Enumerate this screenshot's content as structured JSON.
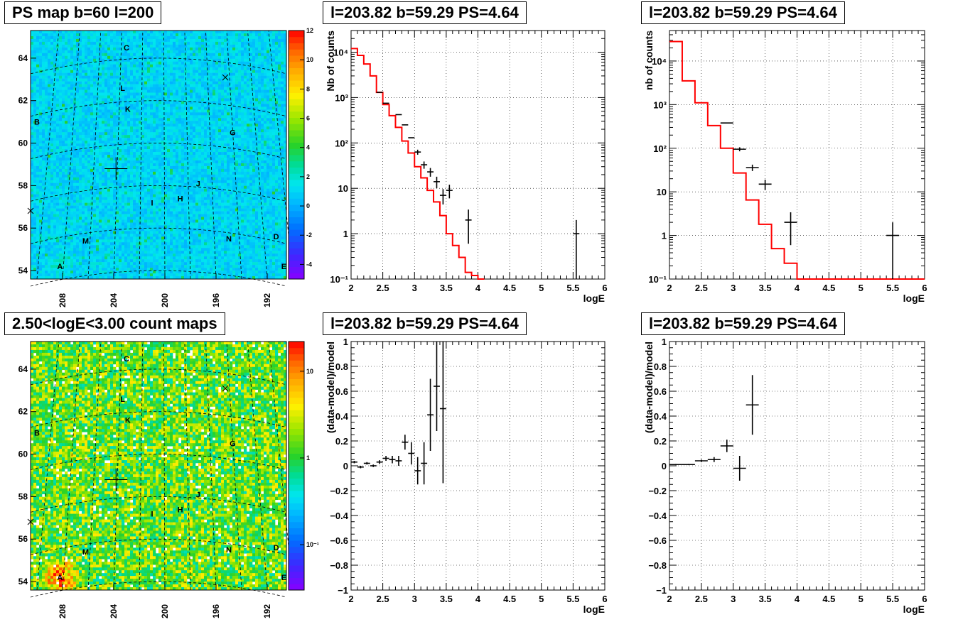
{
  "panels": {
    "ps_map": {
      "title": "PS map b=60 l=200"
    },
    "count_map": {
      "title": "2.50<logE<3.00 count maps"
    },
    "spec_left": {
      "title": "l=203.82 b=59.29 PS=4.64"
    },
    "spec_right": {
      "title": "l=203.82 b=59.29 PS=4.64"
    },
    "resid_left": {
      "title": "l=203.82 b=59.29 PS=4.64"
    },
    "resid_right": {
      "title": "l=203.82 b=59.29 PS=4.64"
    }
  },
  "colors": {
    "model_line": "#ff0000",
    "data": "#000000"
  },
  "chart_data": [
    {
      "id": "ps_map",
      "type": "heatmap",
      "title": "PS map b=60 l=200",
      "x_ticks": [
        "208",
        "204",
        "200",
        "196",
        "192"
      ],
      "x_tick_values": [
        208,
        204,
        200,
        196,
        192
      ],
      "xlim": [
        210.5,
        190.5
      ],
      "y_ticks": [
        "54",
        "56",
        "58",
        "60",
        "62",
        "64"
      ],
      "y_tick_values": [
        54,
        56,
        58,
        60,
        62,
        64
      ],
      "ylim": [
        53.6,
        65.3
      ],
      "colorbar_ticks": [
        "-4",
        "-2",
        "0",
        "2",
        "4",
        "6",
        "8",
        "10",
        "12"
      ],
      "colorbar_values": [
        -4,
        -2,
        0,
        2,
        4,
        6,
        8,
        10,
        12
      ],
      "colorbar_range": [
        -5,
        12
      ],
      "colorbar_log": false,
      "typical_value": 1,
      "source_labels": [
        {
          "text": "C",
          "l": 203.0,
          "b": 64.5
        },
        {
          "text": "L",
          "l": 203.3,
          "b": 62.6
        },
        {
          "text": "K",
          "l": 202.9,
          "b": 61.6
        },
        {
          "text": "B",
          "l": 210.0,
          "b": 61.0
        },
        {
          "text": "G",
          "l": 194.7,
          "b": 60.5
        },
        {
          "text": "J",
          "l": 197.4,
          "b": 58.1
        },
        {
          "text": "I",
          "l": 201.0,
          "b": 57.2
        },
        {
          "text": "H",
          "l": 198.8,
          "b": 57.4
        },
        {
          "text": "M",
          "l": 206.2,
          "b": 55.4
        },
        {
          "text": "N",
          "l": 195.0,
          "b": 55.5
        },
        {
          "text": "D",
          "l": 191.3,
          "b": 55.6
        },
        {
          "text": "A",
          "l": 208.2,
          "b": 54.2
        },
        {
          "text": "E",
          "l": 190.7,
          "b": 54.2
        }
      ]
    },
    {
      "id": "count_map",
      "type": "heatmap",
      "title": "2.50<logE<3.00 count maps",
      "x_ticks": [
        "208",
        "204",
        "200",
        "196",
        "192"
      ],
      "x_tick_values": [
        208,
        204,
        200,
        196,
        192
      ],
      "xlim": [
        210.5,
        190.5
      ],
      "y_ticks": [
        "54",
        "56",
        "58",
        "60",
        "62",
        "64"
      ],
      "y_tick_values": [
        54,
        56,
        58,
        60,
        62,
        64
      ],
      "ylim": [
        53.6,
        65.3
      ],
      "colorbar_ticks": [
        "10⁻¹",
        "1",
        "10"
      ],
      "colorbar_values": [
        0.1,
        1,
        10
      ],
      "colorbar_range": [
        0.03,
        22
      ],
      "colorbar_log": true,
      "typical_value": 1.5,
      "source_labels": [
        {
          "text": "C",
          "l": 203.0,
          "b": 64.5
        },
        {
          "text": "L",
          "l": 203.3,
          "b": 62.6
        },
        {
          "text": "K",
          "l": 202.9,
          "b": 61.6
        },
        {
          "text": "B",
          "l": 210.0,
          "b": 61.0
        },
        {
          "text": "G",
          "l": 194.7,
          "b": 60.5
        },
        {
          "text": "J",
          "l": 197.4,
          "b": 58.1
        },
        {
          "text": "I",
          "l": 201.0,
          "b": 57.2
        },
        {
          "text": "H",
          "l": 198.8,
          "b": 57.4
        },
        {
          "text": "M",
          "l": 206.2,
          "b": 55.4
        },
        {
          "text": "N",
          "l": 195.0,
          "b": 55.5
        },
        {
          "text": "D",
          "l": 191.3,
          "b": 55.6
        },
        {
          "text": "A",
          "l": 208.2,
          "b": 54.2
        },
        {
          "text": "E",
          "l": 190.7,
          "b": 54.2
        }
      ]
    },
    {
      "id": "spec_left",
      "type": "line",
      "title": "l=203.82 b=59.29 PS=4.64",
      "xlabel": "logE",
      "ylabel": "Nb of counts",
      "xlim": [
        2,
        6
      ],
      "ylim": [
        0.1,
        30000
      ],
      "ylog": true,
      "x_ticks": [
        "2",
        "2.5",
        "3",
        "3.5",
        "4",
        "4.5",
        "5",
        "5.5",
        "6"
      ],
      "x_tick_values": [
        2,
        2.5,
        3,
        3.5,
        4,
        4.5,
        5,
        5.5,
        6
      ],
      "y_ticks": [
        "10⁻¹",
        "1",
        "10",
        "10²",
        "10³",
        "10⁴"
      ],
      "y_tick_values": [
        0.1,
        1,
        10,
        100,
        1000,
        10000
      ],
      "model_edges": [
        2.0,
        2.1,
        2.2,
        2.3,
        2.4,
        2.5,
        2.6,
        2.7,
        2.8,
        2.9,
        3.0,
        3.1,
        3.2,
        3.3,
        3.4,
        3.5,
        3.6,
        3.7,
        3.8,
        3.9,
        4.0,
        4.1,
        6.0
      ],
      "model_values": [
        12000,
        8500,
        5500,
        3000,
        1300,
        700,
        400,
        220,
        110,
        60,
        30,
        17,
        9,
        5,
        2.5,
        1,
        0.55,
        0.3,
        0.14,
        0.12,
        0.1
      ],
      "data": [
        {
          "x": 2.45,
          "y": 1300,
          "xerr": 0.05,
          "yerr": [
            0,
            0
          ]
        },
        {
          "x": 2.55,
          "y": 750,
          "xerr": 0.05,
          "yerr": [
            0,
            0
          ]
        },
        {
          "x": 2.75,
          "y": 420,
          "xerr": 0.05,
          "yerr": [
            0,
            0
          ]
        },
        {
          "x": 2.85,
          "y": 250,
          "xerr": 0.05,
          "yerr": [
            0,
            0
          ]
        },
        {
          "x": 2.95,
          "y": 130,
          "xerr": 0.05,
          "yerr": [
            0,
            0
          ]
        },
        {
          "x": 3.05,
          "y": 63,
          "xerr": 0.05,
          "yerr": [
            8,
            8
          ]
        },
        {
          "x": 3.15,
          "y": 33,
          "xerr": 0.05,
          "yerr": [
            6,
            6
          ]
        },
        {
          "x": 3.25,
          "y": 23,
          "xerr": 0.05,
          "yerr": [
            5,
            5
          ]
        },
        {
          "x": 3.35,
          "y": 14,
          "xerr": 0.05,
          "yerr": [
            4,
            4
          ]
        },
        {
          "x": 3.45,
          "y": 7,
          "xerr": 0.05,
          "yerr": [
            2.6,
            2.6
          ]
        },
        {
          "x": 3.55,
          "y": 9,
          "xerr": 0.05,
          "yerr": [
            3,
            3
          ]
        },
        {
          "x": 3.85,
          "y": 2,
          "xerr": 0.05,
          "yerr": [
            1.4,
            1.4
          ]
        },
        {
          "x": 5.55,
          "y": 1,
          "xerr": 0.05,
          "yerr": [
            1,
            1
          ]
        }
      ]
    },
    {
      "id": "spec_right",
      "type": "line",
      "title": "l=203.82 b=59.29 PS=4.64",
      "xlabel": "logE",
      "ylabel": "nb of counts",
      "xlim": [
        2,
        6
      ],
      "ylim": [
        0.1,
        50000
      ],
      "ylog": true,
      "x_ticks": [
        "2",
        "2.5",
        "3",
        "3.5",
        "4",
        "4.5",
        "5",
        "5.5",
        "6"
      ],
      "x_tick_values": [
        2,
        2.5,
        3,
        3.5,
        4,
        4.5,
        5,
        5.5,
        6
      ],
      "y_ticks": [
        "10⁻¹",
        "1",
        "10",
        "10²",
        "10³",
        "10⁴"
      ],
      "y_tick_values": [
        0.1,
        1,
        10,
        100,
        1000,
        10000
      ],
      "model_edges": [
        2.0,
        2.2,
        2.4,
        2.6,
        2.8,
        3.0,
        3.2,
        3.4,
        3.6,
        3.8,
        4.0,
        4.2,
        6.0
      ],
      "model_values": [
        28000,
        3500,
        1100,
        330,
        100,
        27,
        6.5,
        1.8,
        0.5,
        0.23,
        0.1,
        0.1
      ],
      "data": [
        {
          "x": 2.9,
          "y": 380,
          "xerr": 0.1,
          "yerr": [
            0,
            0
          ]
        },
        {
          "x": 3.1,
          "y": 95,
          "xerr": 0.1,
          "yerr": [
            10,
            10
          ]
        },
        {
          "x": 3.3,
          "y": 36,
          "xerr": 0.1,
          "yerr": [
            6,
            6
          ]
        },
        {
          "x": 3.5,
          "y": 15,
          "xerr": 0.1,
          "yerr": [
            4,
            4
          ]
        },
        {
          "x": 3.9,
          "y": 2,
          "xerr": 0.1,
          "yerr": [
            1.4,
            1.4
          ]
        },
        {
          "x": 5.5,
          "y": 1,
          "xerr": 0.1,
          "yerr": [
            1,
            1
          ]
        }
      ]
    },
    {
      "id": "resid_left",
      "type": "scatter",
      "title": "l=203.82 b=59.29 PS=4.64",
      "xlabel": "logE",
      "ylabel": "(data-model)/model",
      "xlim": [
        2,
        6
      ],
      "ylim": [
        -1,
        1
      ],
      "ylog": false,
      "x_ticks": [
        "2",
        "2.5",
        "3",
        "3.5",
        "4",
        "4.5",
        "5",
        "5.5",
        "6"
      ],
      "x_tick_values": [
        2,
        2.5,
        3,
        3.5,
        4,
        4.5,
        5,
        5.5,
        6
      ],
      "y_ticks": [
        "−1",
        "−0.8",
        "−0.6",
        "−0.4",
        "−0.2",
        "0",
        "0.2",
        "0.4",
        "0.6",
        "0.8",
        "1"
      ],
      "y_tick_values": [
        -1,
        -0.8,
        -0.6,
        -0.4,
        -0.2,
        0,
        0.2,
        0.4,
        0.6,
        0.8,
        1
      ],
      "data": [
        {
          "x": 2.05,
          "y": 0.03,
          "xerr": 0.05,
          "yerr": [
            0.01,
            0.01
          ]
        },
        {
          "x": 2.15,
          "y": -0.01,
          "xerr": 0.05,
          "yerr": [
            0.01,
            0.01
          ]
        },
        {
          "x": 2.25,
          "y": 0.02,
          "xerr": 0.05,
          "yerr": [
            0.01,
            0.01
          ]
        },
        {
          "x": 2.35,
          "y": 0.0,
          "xerr": 0.05,
          "yerr": [
            0.01,
            0.01
          ]
        },
        {
          "x": 2.45,
          "y": 0.03,
          "xerr": 0.05,
          "yerr": [
            0.015,
            0.015
          ]
        },
        {
          "x": 2.55,
          "y": 0.06,
          "xerr": 0.05,
          "yerr": [
            0.02,
            0.02
          ]
        },
        {
          "x": 2.65,
          "y": 0.05,
          "xerr": 0.05,
          "yerr": [
            0.03,
            0.03
          ]
        },
        {
          "x": 2.75,
          "y": 0.04,
          "xerr": 0.05,
          "yerr": [
            0.04,
            0.04
          ]
        },
        {
          "x": 2.85,
          "y": 0.19,
          "xerr": 0.05,
          "yerr": [
            0.06,
            0.06
          ]
        },
        {
          "x": 2.95,
          "y": 0.1,
          "xerr": 0.05,
          "yerr": [
            0.09,
            0.09
          ]
        },
        {
          "x": 3.05,
          "y": -0.04,
          "xerr": 0.05,
          "yerr": [
            0.11,
            0.11
          ]
        },
        {
          "x": 3.15,
          "y": 0.02,
          "xerr": 0.05,
          "yerr": [
            0.17,
            0.17
          ]
        },
        {
          "x": 3.25,
          "y": 0.41,
          "xerr": 0.05,
          "yerr": [
            0.29,
            0.29
          ]
        },
        {
          "x": 3.35,
          "y": 0.64,
          "xerr": 0.05,
          "yerr": [
            0.36,
            0.36
          ]
        },
        {
          "x": 3.45,
          "y": 0.46,
          "xerr": 0.05,
          "yerr": [
            0.6,
            0.6
          ]
        }
      ]
    },
    {
      "id": "resid_right",
      "type": "scatter",
      "title": "l=203.82 b=59.29 PS=4.64",
      "xlabel": "logE",
      "ylabel": "(data-model)/model",
      "xlim": [
        2,
        6
      ],
      "ylim": [
        -1,
        1
      ],
      "ylog": false,
      "x_ticks": [
        "2",
        "2.5",
        "3",
        "3.5",
        "4",
        "4.5",
        "5",
        "5.5",
        "6"
      ],
      "x_tick_values": [
        2,
        2.5,
        3,
        3.5,
        4,
        4.5,
        5,
        5.5,
        6
      ],
      "y_ticks": [
        "−1",
        "−0.8",
        "−0.6",
        "−0.4",
        "−0.2",
        "0",
        "0.2",
        "0.4",
        "0.6",
        "0.8",
        "1"
      ],
      "y_tick_values": [
        -1,
        -0.8,
        -0.6,
        -0.4,
        -0.2,
        0,
        0.2,
        0.4,
        0.6,
        0.8,
        1
      ],
      "data": [
        {
          "x": 2.1,
          "y": 0.01,
          "xerr": 0.1,
          "yerr": [
            0.005,
            0.005
          ]
        },
        {
          "x": 2.3,
          "y": 0.01,
          "xerr": 0.1,
          "yerr": [
            0.005,
            0.005
          ]
        },
        {
          "x": 2.5,
          "y": 0.04,
          "xerr": 0.1,
          "yerr": [
            0.01,
            0.01
          ]
        },
        {
          "x": 2.7,
          "y": 0.05,
          "xerr": 0.1,
          "yerr": [
            0.02,
            0.02
          ]
        },
        {
          "x": 2.9,
          "y": 0.16,
          "xerr": 0.1,
          "yerr": [
            0.05,
            0.05
          ]
        },
        {
          "x": 3.1,
          "y": -0.02,
          "xerr": 0.1,
          "yerr": [
            0.1,
            0.1
          ]
        },
        {
          "x": 3.3,
          "y": 0.49,
          "xerr": 0.1,
          "yerr": [
            0.24,
            0.24
          ]
        }
      ]
    }
  ]
}
